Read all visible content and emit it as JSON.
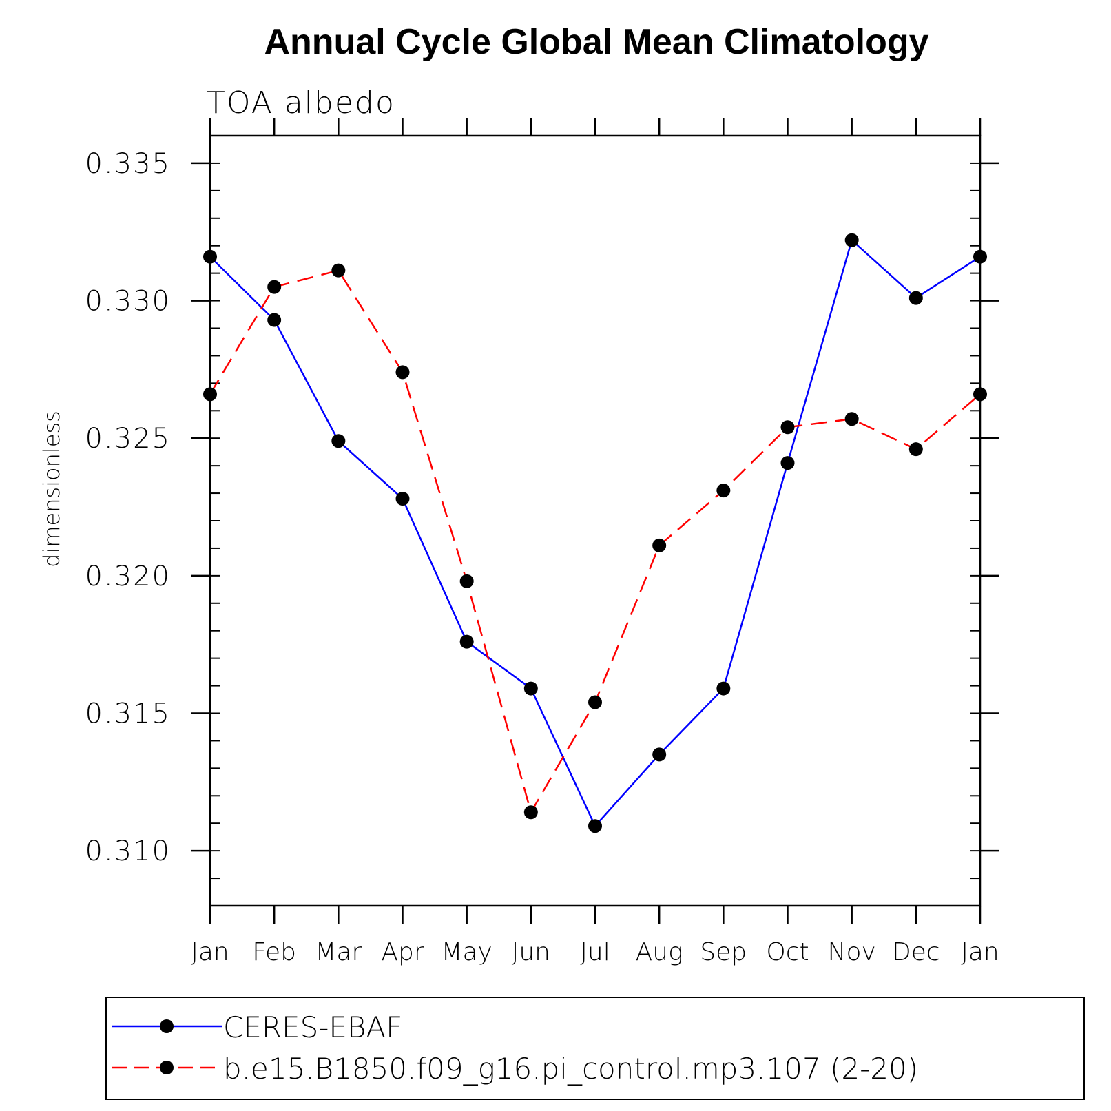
{
  "chart_data": {
    "type": "line",
    "title": "Annual Cycle Global Mean Climatology",
    "subtitle": "TOA albedo",
    "ylabel": "dimensionless",
    "xlabel": "",
    "categories": [
      "Jan",
      "Feb",
      "Mar",
      "Apr",
      "May",
      "Jun",
      "Jul",
      "Aug",
      "Sep",
      "Oct",
      "Nov",
      "Dec",
      "Jan"
    ],
    "ylim": [
      0.308,
      0.336
    ],
    "yticks": [
      0.31,
      0.315,
      0.32,
      0.325,
      0.33,
      0.335
    ],
    "ytick_labels": [
      "0.310",
      "0.315",
      "0.320",
      "0.325",
      "0.330",
      "0.335"
    ],
    "yminor_step": 0.001,
    "grid": false,
    "legend_position": "bottom",
    "series": [
      {
        "name": "CERES-EBAF",
        "color": "#0000ff",
        "style": "solid",
        "marker": "filled-circle",
        "values": [
          0.3316,
          0.3293,
          0.3249,
          0.3228,
          0.3176,
          0.3159,
          0.3109,
          0.3135,
          0.3159,
          0.3241,
          0.3322,
          0.3301,
          0.3316
        ]
      },
      {
        "name": "b.e15.B1850.f09_g16.pi_control.mp3.107 (2-20)",
        "color": "#ff0000",
        "style": "dashed",
        "marker": "filled-circle",
        "values": [
          0.3266,
          0.3305,
          0.3311,
          0.3274,
          0.3198,
          0.3114,
          0.3154,
          0.3211,
          0.3231,
          0.3254,
          0.3257,
          0.3246,
          0.3266
        ]
      }
    ]
  }
}
